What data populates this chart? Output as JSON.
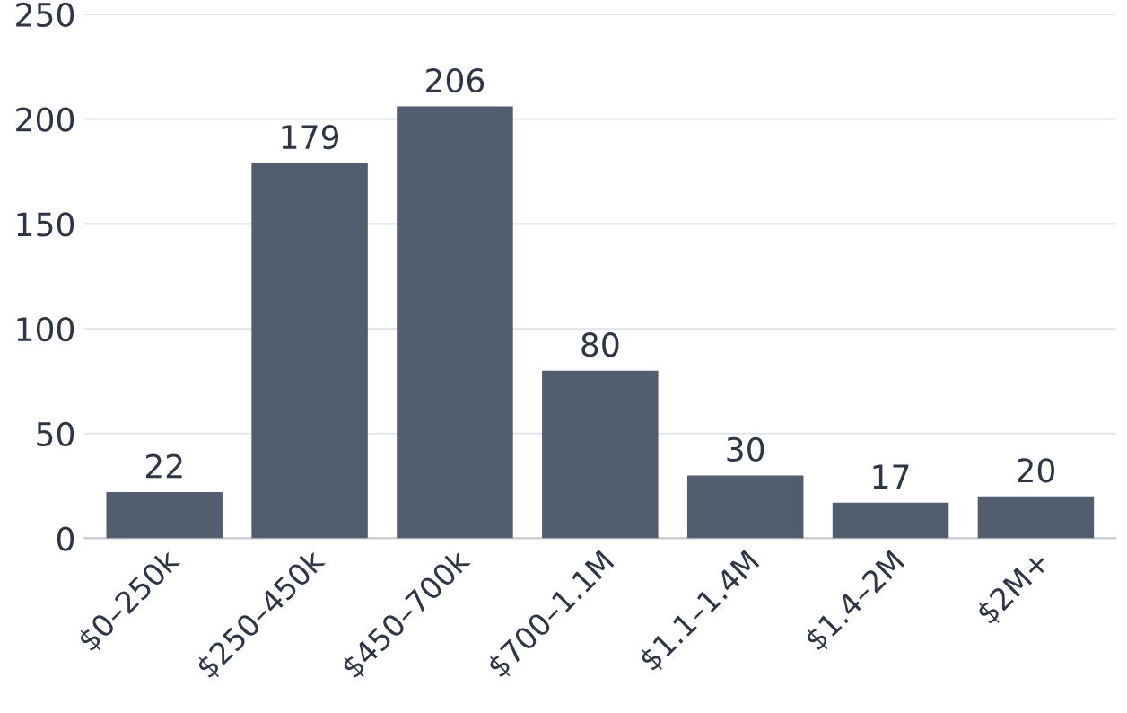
{
  "chart_data": {
    "type": "bar",
    "categories": [
      "$0–250k",
      "$250–450k",
      "$450–700k",
      "$700–1.1M",
      "$1.1–1.4M",
      "$1.4–2M",
      "$2M+"
    ],
    "values": [
      22,
      179,
      206,
      80,
      30,
      17,
      20
    ],
    "color": "#525d6e",
    "ylim": [
      0,
      250
    ],
    "yticks": [
      0,
      50,
      100,
      150,
      200,
      250
    ],
    "grid": "y",
    "data_labels": true
  }
}
